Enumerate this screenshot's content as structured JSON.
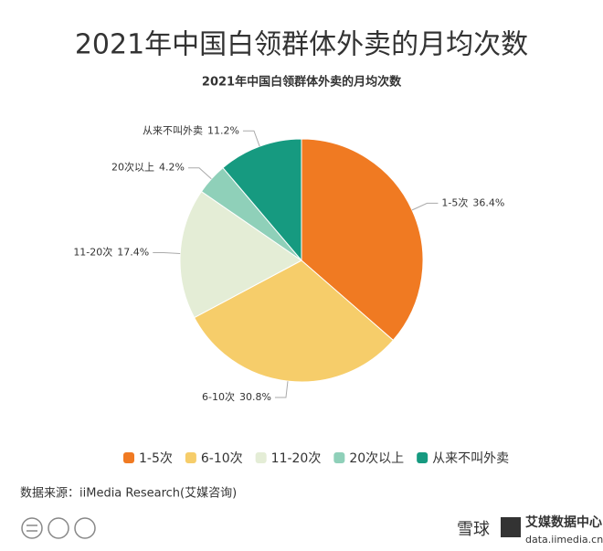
{
  "chart_data": {
    "type": "pie",
    "title": "2021年中国白领群体外卖的月均次数",
    "subtitle": "2021年中国白领群体外卖的月均次数",
    "categories": [
      "1-5次",
      "6-10次",
      "11-20次",
      "20次以上",
      "从来不叫外卖"
    ],
    "values": [
      36.4,
      30.8,
      17.4,
      4.2,
      11.2
    ],
    "value_labels": [
      "36.4%",
      "30.8%",
      "17.4%",
      "4.2%",
      "11.2%"
    ],
    "colors": [
      "#f07a22",
      "#f6cd6a",
      "#e4edd6",
      "#8fd0b9",
      "#169a80"
    ],
    "source": "数据来源：iiMedia Research(艾媒咨询)"
  },
  "footer": {
    "site": "雪球",
    "brand": "艾媒数据中心",
    "url": "data.iimedia.cn"
  }
}
